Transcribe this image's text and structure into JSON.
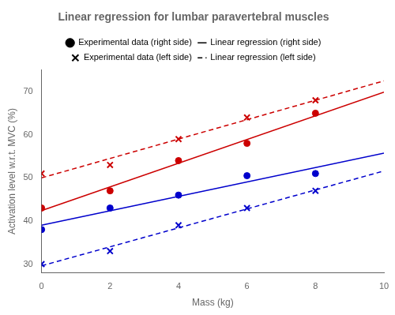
{
  "chart_data": {
    "type": "scatter",
    "title": "Linear regression for lumbar paravertebral muscles",
    "xlabel": "Mass (kg)",
    "ylabel": "Activation level w.r.t. MVC (%)",
    "xlim": [
      0,
      10
    ],
    "ylim": [
      28,
      75
    ],
    "xticks": [
      0,
      2,
      4,
      6,
      8,
      10
    ],
    "yticks": [
      30,
      40,
      50,
      60,
      70
    ],
    "grid": false,
    "legend": "top",
    "series": [
      {
        "name": "Experimental data (right side)",
        "type": "scatter",
        "marker": "circle",
        "color": "#cc0000",
        "x": [
          0,
          2,
          4,
          6,
          8
        ],
        "values": [
          43,
          47,
          54,
          58,
          65
        ]
      },
      {
        "name": "Linear regression (right side)",
        "type": "line",
        "line_style": "solid",
        "color": "#cc0000",
        "x": [
          0,
          10
        ],
        "values": [
          42.4,
          69.9
        ]
      },
      {
        "name": "Experimental data (left side)",
        "type": "scatter",
        "marker": "cross",
        "color": "#cc0000",
        "x": [
          0,
          2,
          4,
          6,
          8
        ],
        "values": [
          51,
          53,
          59,
          64,
          68
        ]
      },
      {
        "name": "Linear regression (left side)",
        "type": "line",
        "line_style": "dashed",
        "color": "#cc0000",
        "x": [
          0,
          10
        ],
        "values": [
          50,
          72.5
        ]
      },
      {
        "name": "Experimental data (right side)",
        "type": "scatter",
        "marker": "circle",
        "color": "#0000cc",
        "x": [
          0,
          2,
          4,
          6,
          8
        ],
        "values": [
          38,
          43,
          46,
          50.5,
          51
        ]
      },
      {
        "name": "Linear regression (right side)",
        "type": "line",
        "line_style": "solid",
        "color": "#0000cc",
        "x": [
          0,
          10
        ],
        "values": [
          39,
          55.75
        ]
      },
      {
        "name": "Experimental data (left side)",
        "type": "scatter",
        "marker": "cross",
        "color": "#0000cc",
        "x": [
          0,
          2,
          4,
          6,
          8
        ],
        "values": [
          30,
          33,
          39,
          43,
          47
        ]
      },
      {
        "name": "Linear regression (left side)",
        "type": "line",
        "line_style": "dashed",
        "color": "#0000cc",
        "x": [
          0,
          10
        ],
        "values": [
          29.6,
          51.6
        ]
      }
    ]
  }
}
